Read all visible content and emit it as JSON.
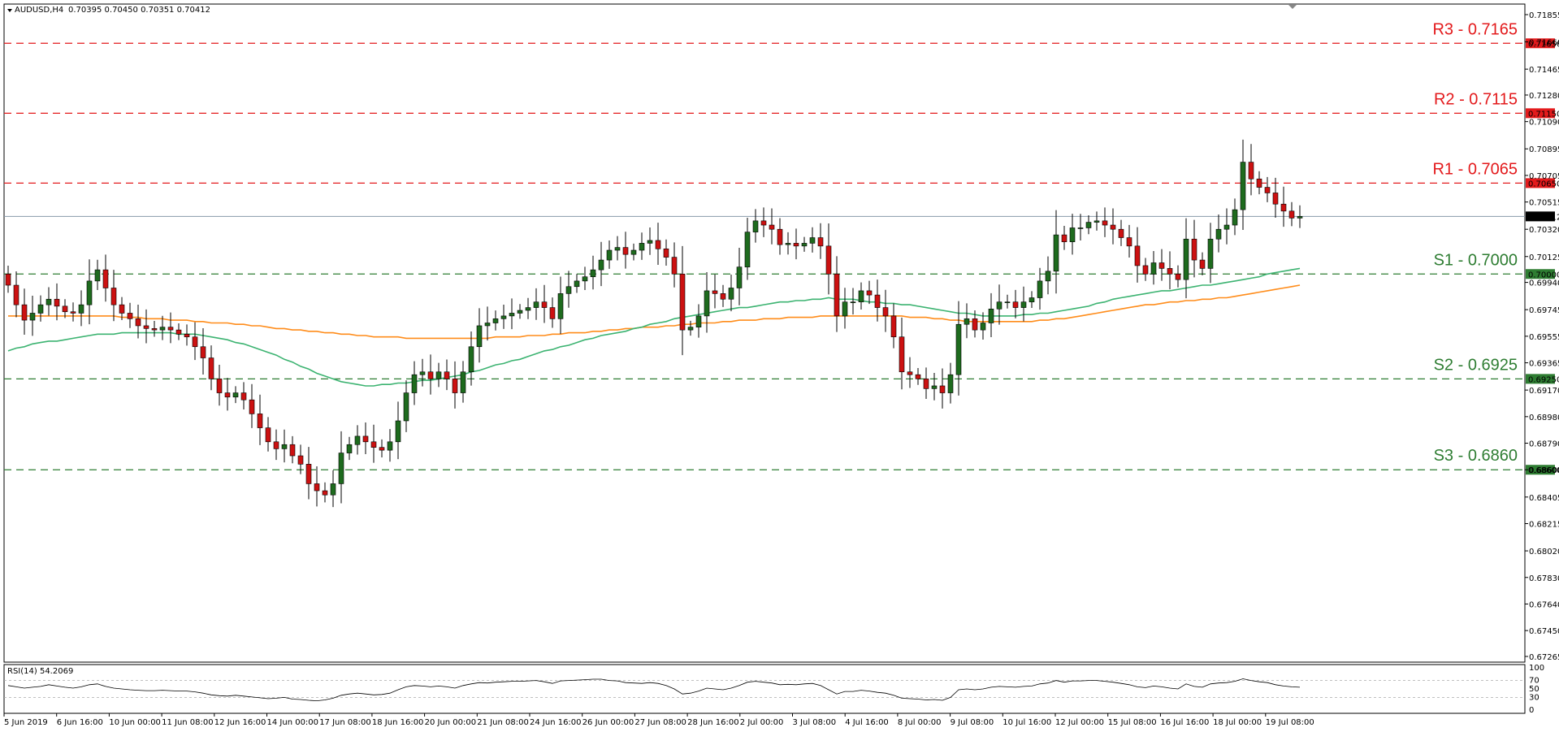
{
  "header": {
    "symbol_label": "AUDUSD,H4",
    "ohlc_label": "0.70395 0.70450 0.70351 0.70412"
  },
  "rsi_panel": {
    "label": "RSI(14) 54.2069",
    "levels": [
      70,
      30
    ],
    "ticks": [
      "100",
      "70",
      "50",
      "30",
      "0"
    ]
  },
  "colors": {
    "bull": "#1e6b1e",
    "bear": "#cc1111",
    "ma_green": "#3cb371",
    "ma_orange": "#ff8c1a",
    "resistance": "#e31a1c",
    "support": "#2e7d32",
    "price_line": "#8899aa"
  },
  "chart_data": {
    "type": "candlestick",
    "ylim": [
      0.67265,
      0.71855
    ],
    "y_ticks": [
      "0.71855",
      "0.71660",
      "0.71465",
      "0.71280",
      "0.71090",
      "0.70895",
      "0.70705",
      "0.70515",
      "0.70320",
      "0.70125",
      "0.69940",
      "0.69745",
      "0.69555",
      "0.69365",
      "0.69170",
      "0.68980",
      "0.68790",
      "0.68600",
      "0.68405",
      "0.68215",
      "0.68020",
      "0.67830",
      "0.67640",
      "0.67450",
      "0.67265"
    ],
    "x_ticks": [
      "5 Jun 2019",
      "6 Jun 16:00",
      "10 Jun 00:00",
      "11 Jun 08:00",
      "12 Jun 16:00",
      "14 Jun 00:00",
      "17 Jun 08:00",
      "18 Jun 16:00",
      "20 Jun 00:00",
      "21 Jun 08:00",
      "24 Jun 16:00",
      "26 Jun 00:00",
      "27 Jun 08:00",
      "28 Jun 16:00",
      "2 Jul 00:00",
      "3 Jul 08:00",
      "4 Jul 16:00",
      "8 Jul 00:00",
      "9 Jul 08:00",
      "10 Jul 16:00",
      "12 Jul 00:00",
      "15 Jul 08:00",
      "16 Jul 16:00",
      "18 Jul 00:00",
      "19 Jul 08:00"
    ],
    "current_price": 0.70412,
    "current_price_label": "0.70412",
    "levels": [
      {
        "label": "R3 - 0.7165",
        "value": 0.7165,
        "axis_label": "0.71650",
        "kind": "resistance"
      },
      {
        "label": "R2 - 0.7115",
        "value": 0.7115,
        "axis_label": "0.71150",
        "kind": "resistance"
      },
      {
        "label": "R1 - 0.7065",
        "value": 0.7065,
        "axis_label": "0.70650",
        "kind": "resistance"
      },
      {
        "label": "S1 - 0.7000",
        "value": 0.7,
        "axis_label": "0.70000",
        "kind": "support"
      },
      {
        "label": "S2 - 0.6925",
        "value": 0.6925,
        "axis_label": "0.69250",
        "kind": "support"
      },
      {
        "label": "S3 - 0.6860",
        "value": 0.686,
        "axis_label": "0.68600",
        "kind": "support"
      }
    ],
    "close": [
      0.6992,
      0.6978,
      0.6967,
      0.6972,
      0.6978,
      0.6982,
      0.6977,
      0.6973,
      0.6972,
      0.6978,
      0.6995,
      0.7003,
      0.699,
      0.6978,
      0.6972,
      0.6968,
      0.6963,
      0.6961,
      0.696,
      0.6962,
      0.696,
      0.6957,
      0.6955,
      0.6948,
      0.694,
      0.6925,
      0.6915,
      0.6912,
      0.6915,
      0.691,
      0.69,
      0.689,
      0.688,
      0.6875,
      0.6878,
      0.687,
      0.6864,
      0.685,
      0.6845,
      0.6842,
      0.685,
      0.6872,
      0.6878,
      0.6884,
      0.688,
      0.6876,
      0.6874,
      0.688,
      0.6895,
      0.6915,
      0.6928,
      0.693,
      0.6925,
      0.693,
      0.6925,
      0.6915,
      0.693,
      0.6948,
      0.6963,
      0.6965,
      0.6968,
      0.697,
      0.6972,
      0.6974,
      0.6976,
      0.698,
      0.6976,
      0.6968,
      0.6986,
      0.6991,
      0.6995,
      0.6998,
      0.7003,
      0.701,
      0.7017,
      0.7019,
      0.7014,
      0.7017,
      0.7022,
      0.7024,
      0.7018,
      0.7012,
      0.7,
      0.696,
      0.6962,
      0.697,
      0.6988,
      0.6986,
      0.6982,
      0.699,
      0.7005,
      0.703,
      0.7038,
      0.7035,
      0.7032,
      0.7021,
      0.7022,
      0.702,
      0.7022,
      0.7026,
      0.702,
      0.7,
      0.697,
      0.698,
      0.698,
      0.6988,
      0.6985,
      0.6976,
      0.697,
      0.6955,
      0.693,
      0.6928,
      0.6925,
      0.6918,
      0.692,
      0.6915,
      0.6928,
      0.6964,
      0.6968,
      0.696,
      0.6965,
      0.6975,
      0.698,
      0.698,
      0.6976,
      0.698,
      0.6983,
      0.6995,
      0.7002,
      0.7028,
      0.7023,
      0.7033,
      0.7033,
      0.7037,
      0.7038,
      0.7035,
      0.7032,
      0.7026,
      0.702,
      0.7006,
      0.7,
      0.7008,
      0.7004,
      0.7,
      0.6996,
      0.7025,
      0.701,
      0.7004,
      0.7025,
      0.7032,
      0.7035,
      0.7046,
      0.708,
      0.7068,
      0.7062,
      0.7058,
      0.705,
      0.7045,
      0.704,
      0.70412
    ],
    "ma_green": [
      0.6945,
      0.6947,
      0.6948,
      0.695,
      0.6951,
      0.6952,
      0.6952,
      0.6953,
      0.6954,
      0.6955,
      0.6956,
      0.6957,
      0.6957,
      0.6957,
      0.6958,
      0.6958,
      0.6958,
      0.6958,
      0.6958,
      0.6958,
      0.6958,
      0.6957,
      0.6957,
      0.6957,
      0.6956,
      0.6955,
      0.6954,
      0.6953,
      0.6951,
      0.695,
      0.6948,
      0.6946,
      0.6944,
      0.6942,
      0.6939,
      0.6937,
      0.6934,
      0.6932,
      0.6929,
      0.6927,
      0.6925,
      0.6923,
      0.6922,
      0.6921,
      0.692,
      0.692,
      0.6921,
      0.6921,
      0.6922,
      0.6922,
      0.6923,
      0.6924,
      0.6924,
      0.6925,
      0.6926,
      0.6927,
      0.6928,
      0.693,
      0.6931,
      0.6933,
      0.6935,
      0.6936,
      0.6938,
      0.6939,
      0.6941,
      0.6943,
      0.6945,
      0.6946,
      0.6948,
      0.6949,
      0.6951,
      0.6953,
      0.6954,
      0.6956,
      0.6957,
      0.6958,
      0.6959,
      0.6961,
      0.6962,
      0.6964,
      0.6965,
      0.6966,
      0.6968,
      0.6969,
      0.697,
      0.6971,
      0.6972,
      0.6973,
      0.6974,
      0.6975,
      0.6976,
      0.6976,
      0.6977,
      0.6978,
      0.6979,
      0.698,
      0.698,
      0.6981,
      0.6981,
      0.6982,
      0.6982,
      0.6983,
      0.6982,
      0.6982,
      0.6982,
      0.6981,
      0.698,
      0.698,
      0.6979,
      0.6979,
      0.6978,
      0.6978,
      0.6977,
      0.6976,
      0.6975,
      0.6974,
      0.6973,
      0.6972,
      0.6972,
      0.6971,
      0.697,
      0.697,
      0.697,
      0.697,
      0.697,
      0.6971,
      0.6971,
      0.6972,
      0.6972,
      0.6973,
      0.6974,
      0.6975,
      0.6976,
      0.6977,
      0.6979,
      0.698,
      0.6982,
      0.6983,
      0.6984,
      0.6985,
      0.6986,
      0.6987,
      0.6988,
      0.6988,
      0.6989,
      0.699,
      0.6991,
      0.6992,
      0.6992,
      0.6993,
      0.6994,
      0.6995,
      0.6996,
      0.6997,
      0.6998,
      0.7,
      0.7001,
      0.7002,
      0.7003,
      0.7004
    ],
    "ma_orange": [
      0.697,
      0.697,
      0.697,
      0.697,
      0.697,
      0.697,
      0.697,
      0.697,
      0.697,
      0.697,
      0.697,
      0.697,
      0.697,
      0.697,
      0.6969,
      0.6969,
      0.6969,
      0.6968,
      0.6968,
      0.6968,
      0.6967,
      0.6967,
      0.6967,
      0.6966,
      0.6966,
      0.6965,
      0.6965,
      0.6965,
      0.6964,
      0.6964,
      0.6963,
      0.6963,
      0.6962,
      0.6961,
      0.6961,
      0.696,
      0.696,
      0.6959,
      0.6959,
      0.6958,
      0.6958,
      0.6957,
      0.6957,
      0.6956,
      0.6956,
      0.6955,
      0.6955,
      0.6955,
      0.6955,
      0.6954,
      0.6954,
      0.6954,
      0.6954,
      0.6954,
      0.6954,
      0.6954,
      0.6954,
      0.6954,
      0.6954,
      0.6954,
      0.6955,
      0.6955,
      0.6955,
      0.6955,
      0.6956,
      0.6956,
      0.6956,
      0.6957,
      0.6957,
      0.6958,
      0.6958,
      0.6958,
      0.6959,
      0.6959,
      0.696,
      0.696,
      0.6961,
      0.6961,
      0.6962,
      0.6962,
      0.6962,
      0.6963,
      0.6963,
      0.6964,
      0.6964,
      0.6965,
      0.6965,
      0.6965,
      0.6966,
      0.6966,
      0.6967,
      0.6967,
      0.6967,
      0.6968,
      0.6968,
      0.6968,
      0.6969,
      0.6969,
      0.6969,
      0.6969,
      0.697,
      0.697,
      0.697,
      0.697,
      0.697,
      0.697,
      0.697,
      0.697,
      0.697,
      0.697,
      0.697,
      0.6969,
      0.6969,
      0.6969,
      0.6968,
      0.6968,
      0.6967,
      0.6967,
      0.6966,
      0.6966,
      0.6966,
      0.6966,
      0.6966,
      0.6966,
      0.6966,
      0.6966,
      0.6966,
      0.6967,
      0.6967,
      0.6968,
      0.6968,
      0.6969,
      0.697,
      0.6971,
      0.6972,
      0.6973,
      0.6974,
      0.6975,
      0.6976,
      0.6977,
      0.6978,
      0.6978,
      0.6979,
      0.698,
      0.698,
      0.6981,
      0.6981,
      0.6982,
      0.6982,
      0.6983,
      0.6983,
      0.6984,
      0.6985,
      0.6986,
      0.6987,
      0.6988,
      0.6989,
      0.699,
      0.6991,
      0.6992
    ],
    "rsi": [
      58,
      55,
      52,
      54,
      56,
      60,
      57,
      54,
      52,
      55,
      60,
      62,
      56,
      52,
      50,
      48,
      47,
      46,
      46,
      47,
      46,
      45,
      45,
      43,
      40,
      36,
      34,
      33,
      35,
      33,
      31,
      29,
      27,
      28,
      30,
      26,
      25,
      23,
      22,
      24,
      28,
      35,
      38,
      40,
      38,
      36,
      37,
      40,
      48,
      55,
      58,
      57,
      55,
      57,
      55,
      52,
      58,
      62,
      65,
      64,
      66,
      67,
      68,
      68,
      69,
      70,
      67,
      63,
      69,
      70,
      71,
      72,
      73,
      73,
      70,
      69,
      65,
      64,
      63,
      65,
      63,
      58,
      50,
      38,
      40,
      45,
      52,
      50,
      48,
      52,
      58,
      66,
      68,
      66,
      64,
      60,
      61,
      60,
      62,
      63,
      58,
      48,
      38,
      44,
      44,
      47,
      45,
      42,
      40,
      35,
      28,
      27,
      26,
      24,
      25,
      23,
      30,
      48,
      50,
      48,
      50,
      54,
      56,
      55,
      54,
      56,
      57,
      62,
      64,
      70,
      66,
      69,
      69,
      70,
      70,
      68,
      66,
      63,
      60,
      55,
      53,
      57,
      55,
      52,
      50,
      62,
      56,
      54,
      62,
      64,
      65,
      68,
      74,
      70,
      67,
      65,
      60,
      57,
      55,
      54
    ]
  }
}
